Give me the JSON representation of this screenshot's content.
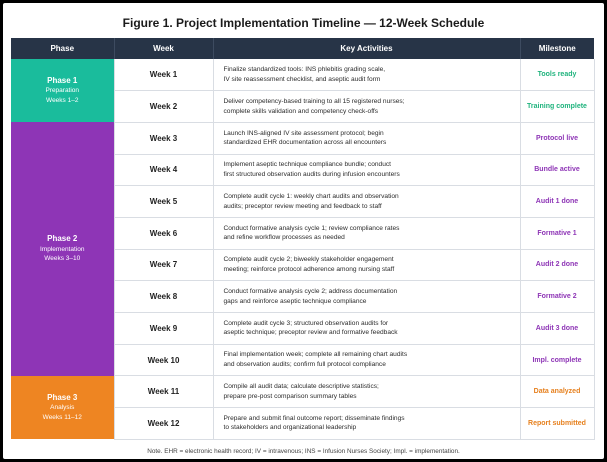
{
  "title": "Figure 1. Project Implementation Timeline — 12-Week Schedule",
  "headers": {
    "phase": "Phase",
    "week": "Week",
    "activities": "Key Activities",
    "milestone": "Milestone"
  },
  "colors": {
    "header": "#273447",
    "phase1": "#1abc9c",
    "phase2": "#8e35b6",
    "phase3": "#ee8522"
  },
  "phases": [
    {
      "name": "Phase 1",
      "label": "Preparation",
      "weeks": "Weeks 1–2"
    },
    {
      "name": "Phase 2",
      "label": "Implementation",
      "weeks": "Weeks 3–10"
    },
    {
      "name": "Phase 3",
      "label": "Analysis",
      "weeks": "Weeks 11–12"
    }
  ],
  "rows": [
    {
      "week": "Week 1",
      "line1": "Finalize standardized tools: INS phlebitis grading scale,",
      "line2": "IV site reassessment checklist, and aseptic audit form",
      "milestone": "Tools ready"
    },
    {
      "week": "Week 2",
      "line1": "Deliver competency-based training to all 15 registered nurses;",
      "line2": "complete skills validation and competency check-offs",
      "milestone": "Training complete"
    },
    {
      "week": "Week 3",
      "line1": "Launch INS-aligned IV site assessment protocol; begin",
      "line2": "standardized EHR documentation across all encounters",
      "milestone": "Protocol live"
    },
    {
      "week": "Week 4",
      "line1": "Implement aseptic technique compliance bundle; conduct",
      "line2": "first structured observation audits during infusion encounters",
      "milestone": "Bundle active"
    },
    {
      "week": "Week 5",
      "line1": "Complete audit cycle 1: weekly chart audits and observation",
      "line2": "audits; preceptor review meeting and feedback to staff",
      "milestone": "Audit 1 done"
    },
    {
      "week": "Week 6",
      "line1": "Conduct formative analysis cycle 1; review compliance rates",
      "line2": "and refine workflow processes as needed",
      "milestone": "Formative 1"
    },
    {
      "week": "Week 7",
      "line1": "Complete audit cycle 2; biweekly stakeholder engagement",
      "line2": "meeting; reinforce protocol adherence among nursing staff",
      "milestone": "Audit 2 done"
    },
    {
      "week": "Week 8",
      "line1": "Conduct formative analysis cycle 2; address documentation",
      "line2": "gaps and reinforce aseptic technique compliance",
      "milestone": "Formative 2"
    },
    {
      "week": "Week 9",
      "line1": "Complete audit cycle 3; structured observation audits for",
      "line2": "aseptic technique; preceptor review and formative feedback",
      "milestone": "Audit 3 done"
    },
    {
      "week": "Week 10",
      "line1": "Final implementation week; complete all remaining chart audits",
      "line2": "and observation audits; confirm full protocol compliance",
      "milestone": "Impl. complete"
    },
    {
      "week": "Week 11",
      "line1": "Compile all audit data; calculate descriptive statistics;",
      "line2": "prepare pre-post comparison summary tables",
      "milestone": "Data analyzed"
    },
    {
      "week": "Week 12",
      "line1": "Prepare and submit final outcome report; disseminate findings",
      "line2": "to stakeholders and organizational leadership",
      "milestone": "Report submitted"
    }
  ],
  "note": "Note. EHR = electronic health record; IV = intravenous; INS = Infusion Nurses Society; Impl. = implementation."
}
